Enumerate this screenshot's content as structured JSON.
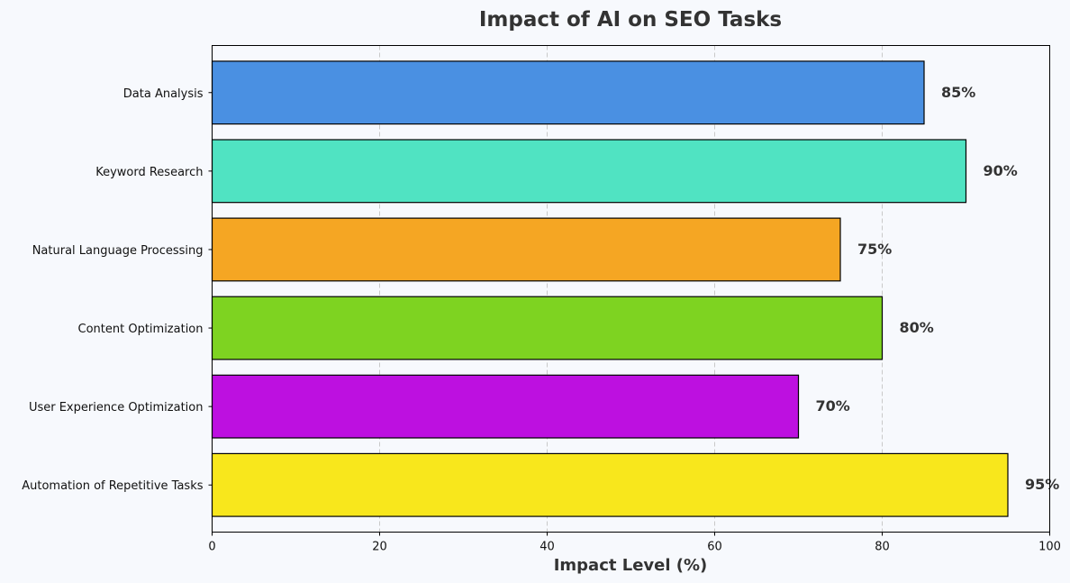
{
  "chart_data": {
    "type": "bar",
    "orientation": "horizontal",
    "title": "Impact of AI on SEO Tasks",
    "xlabel": "Impact Level (%)",
    "ylabel": "",
    "xlim": [
      0,
      100
    ],
    "xticks": [
      0,
      20,
      40,
      60,
      80,
      100
    ],
    "grid": "x-axis dashed",
    "categories": [
      "Data Analysis",
      "Keyword Research",
      "Natural Language Processing",
      "Content Optimization",
      "User Experience Optimization",
      "Automation of Repetitive Tasks"
    ],
    "values": [
      85,
      90,
      75,
      80,
      70,
      95
    ],
    "value_labels": [
      "85%",
      "90%",
      "75%",
      "80%",
      "70%",
      "95%"
    ],
    "colors": [
      "#4a90e2",
      "#50e3c2",
      "#f5a623",
      "#7ed321",
      "#bd10e0",
      "#f8e71c"
    ]
  }
}
